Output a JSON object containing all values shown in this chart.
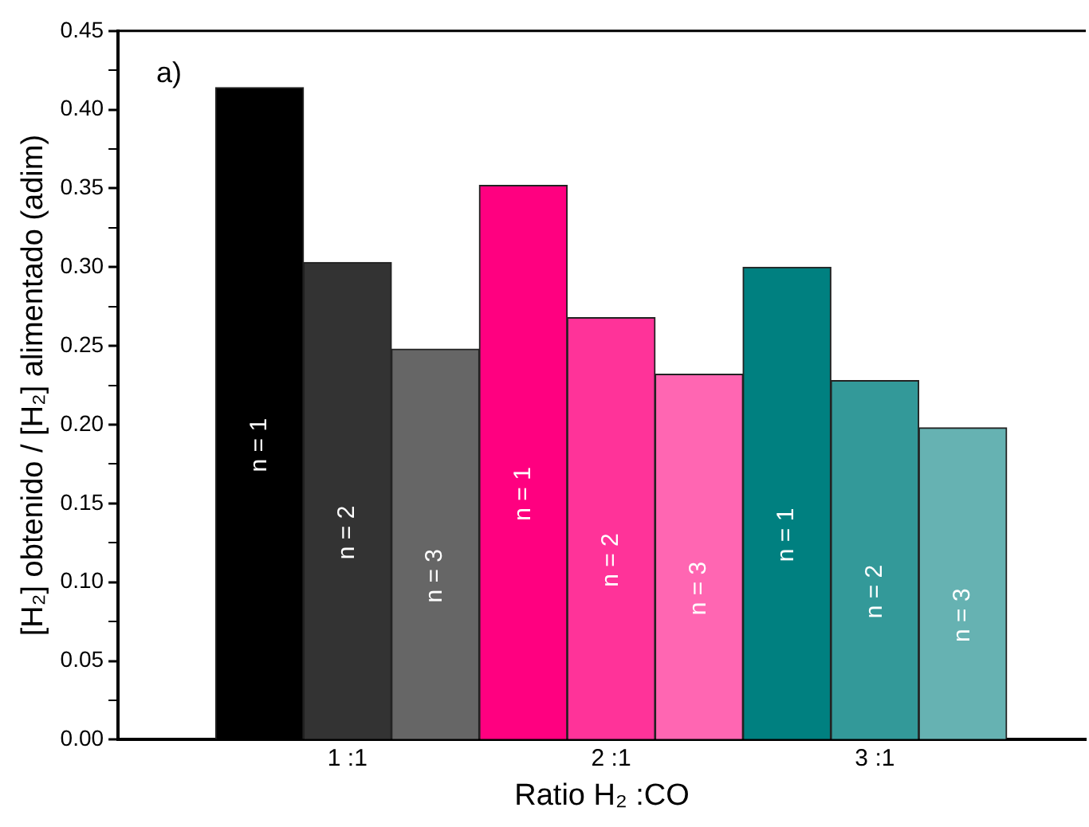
{
  "chart_data": {
    "type": "bar",
    "xlabel": "Ratio H₂ :CO",
    "ylabel": "[H₂] obtenido / [H₂] alimentado (adim)",
    "annotations": [
      "a)"
    ],
    "categories": [
      "1 :1",
      "2 :1",
      "3 :1"
    ],
    "series": [
      {
        "name": "n = 1",
        "colors": [
          "#000000",
          "#ff0080",
          "#008080"
        ],
        "values": [
          0.414,
          0.352,
          0.3
        ]
      },
      {
        "name": "n = 2",
        "colors": [
          "#333333",
          "#ff3399",
          "#339999"
        ],
        "values": [
          0.303,
          0.268,
          0.228
        ]
      },
      {
        "name": "n = 3",
        "colors": [
          "#666666",
          "#ff66b2",
          "#66b2b2"
        ],
        "values": [
          0.248,
          0.232,
          0.198
        ]
      }
    ],
    "ylim": [
      0,
      0.45
    ],
    "yticks": [
      {
        "value": 0,
        "label": "0.00"
      },
      {
        "value": 0.025,
        "label": null
      },
      {
        "value": 0.05,
        "label": "0.05"
      },
      {
        "value": 0.075,
        "label": null
      },
      {
        "value": 0.1,
        "label": "0.10"
      },
      {
        "value": 0.125,
        "label": null
      },
      {
        "value": 0.15,
        "label": "0.15"
      },
      {
        "value": 0.175,
        "label": null
      },
      {
        "value": 0.2,
        "label": "0.20"
      },
      {
        "value": 0.225,
        "label": null
      },
      {
        "value": 0.25,
        "label": "0.25"
      },
      {
        "value": 0.275,
        "label": null
      },
      {
        "value": 0.3,
        "label": "0.30"
      },
      {
        "value": 0.325,
        "label": null
      },
      {
        "value": 0.35,
        "label": "0.35"
      },
      {
        "value": 0.375,
        "label": null
      },
      {
        "value": 0.4,
        "label": "0.40"
      },
      {
        "value": 0.425,
        "label": null
      },
      {
        "value": 0.45,
        "label": "0.45"
      }
    ],
    "grid": false,
    "legend": false
  }
}
